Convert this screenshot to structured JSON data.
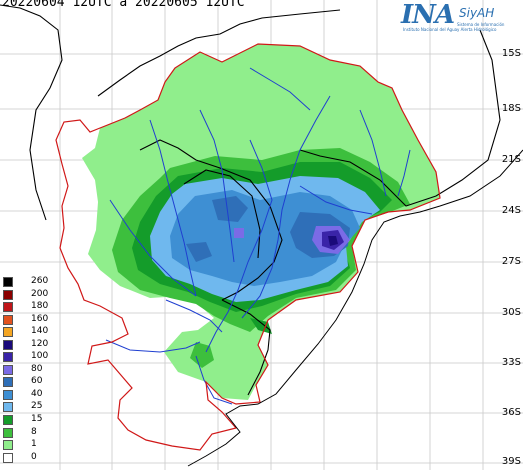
{
  "header": {
    "title": "20220604 12UTC a 20220605 12UTC"
  },
  "logo": {
    "ina": "INA",
    "siyah": "SiyAH",
    "org_line1": "Instituto Nacional del Agua",
    "org_line2": "Sistema de Información",
    "org_line3": "y Alerta Hidrológico"
  },
  "latitudes": [
    "15S",
    "18S",
    "21S",
    "24S",
    "27S",
    "30S",
    "33S",
    "36S",
    "39S"
  ],
  "legend": {
    "items": [
      {
        "label": "260",
        "color": "#000000"
      },
      {
        "label": "200",
        "color": "#8b0000"
      },
      {
        "label": "180",
        "color": "#c0161a"
      },
      {
        "label": "160",
        "color": "#e2521f"
      },
      {
        "label": "140",
        "color": "#f5a623"
      },
      {
        "label": "120",
        "color": "#1a0a7a"
      },
      {
        "label": "100",
        "color": "#3a24a8"
      },
      {
        "label": "80",
        "color": "#7b6be6"
      },
      {
        "label": "60",
        "color": "#2f6fb8"
      },
      {
        "label": "40",
        "color": "#3e8fd3"
      },
      {
        "label": "25",
        "color": "#6fb8ee"
      },
      {
        "label": "15",
        "color": "#149c2a"
      },
      {
        "label": "8",
        "color": "#3dbf3d"
      },
      {
        "label": "1",
        "color": "#90ee8c"
      },
      {
        "label": "0",
        "color": "#ffffff"
      }
    ]
  },
  "colors": {
    "basin_outline": "#d01818",
    "rivers": "#1f3fd0",
    "country_borders": "#000000",
    "grid": "#c8c8c8"
  }
}
